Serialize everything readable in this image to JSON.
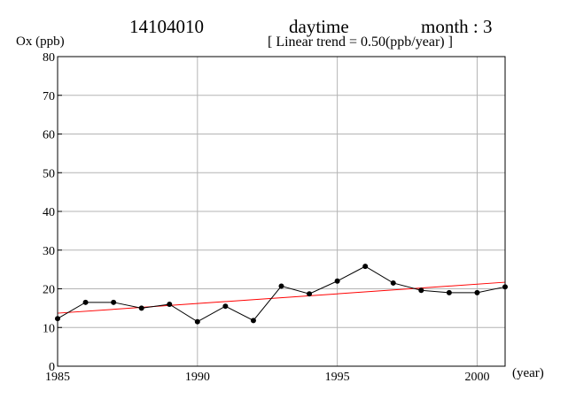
{
  "header": {
    "station": "14104010",
    "period": "daytime",
    "month": "month : 3",
    "trend_note": "[ Linear trend = 0.50(ppb/year) ]"
  },
  "chart_data": {
    "type": "line",
    "title": "",
    "ylabel": "Ox (ppb)",
    "xlabel": "(year)",
    "xlim": [
      1985,
      2001
    ],
    "ylim": [
      0,
      80
    ],
    "xticks": [
      1985,
      1990,
      1995,
      2000
    ],
    "yticks": [
      0,
      10,
      20,
      30,
      40,
      50,
      60,
      70,
      80
    ],
    "grid": true,
    "colors": {
      "series": "#000000",
      "trend": "#ff0000",
      "grid": "#b4b4b4"
    },
    "series": [
      {
        "x": [
          1985,
          1986,
          1987,
          1988,
          1989,
          1990,
          1991,
          1992,
          1993,
          1994,
          1995,
          1996,
          1997,
          1998,
          1999,
          2000,
          2001
        ],
        "y": [
          12.3,
          16.5,
          16.5,
          15.0,
          16.0,
          11.5,
          15.5,
          11.8,
          20.7,
          18.7,
          22.0,
          25.8,
          21.5,
          19.6,
          19.0,
          19.0,
          20.5
        ]
      }
    ],
    "trend_line": {
      "x": [
        1985,
        2001
      ],
      "y": [
        13.7,
        21.7
      ]
    }
  }
}
